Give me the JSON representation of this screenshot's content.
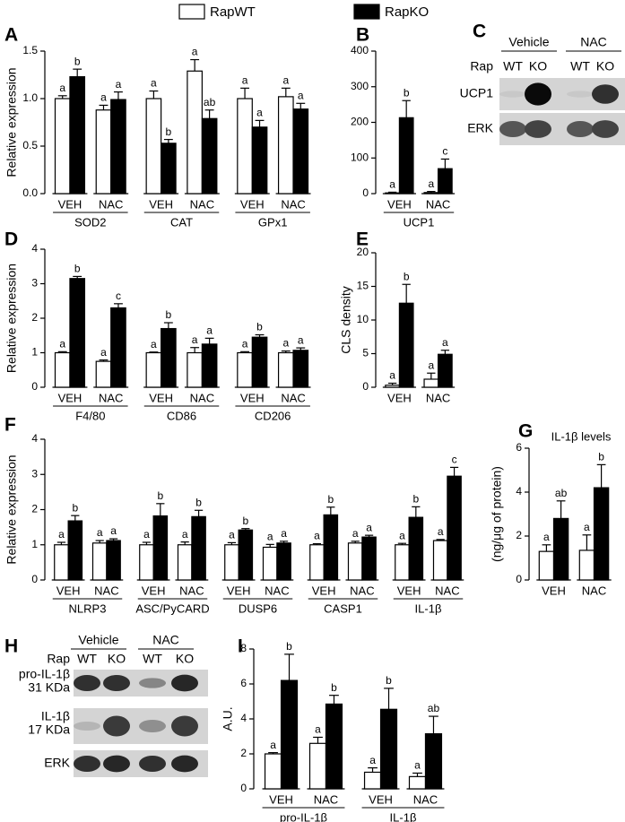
{
  "legend": {
    "items": [
      {
        "name": "RapWT",
        "color": "#ffffff"
      },
      {
        "name": "RapKO",
        "color": "#000000"
      }
    ]
  },
  "chart_data": [
    {
      "type": "bar",
      "label": "A",
      "y_label": "Relative expression",
      "groups": [
        "SOD2",
        "CAT",
        "GPx1"
      ],
      "categories": [
        "VEH",
        "NAC",
        "VEH",
        "NAC",
        "VEH",
        "NAC"
      ],
      "ylim": [
        0,
        1.5
      ],
      "yticks": [
        {
          "value": 0,
          "label": "0.0"
        },
        0.5,
        {
          "value": 1,
          "label": "1.0"
        },
        1.5
      ],
      "series": [
        {
          "color": "#ffffff",
          "values": [
            1.0,
            0.88,
            1.0,
            1.29,
            1.0,
            1.02
          ],
          "errors": [
            0.03,
            0.05,
            0.08,
            0.12,
            0.11,
            0.09
          ],
          "letters": [
            "a",
            "a",
            "a",
            "a",
            "a",
            "a"
          ]
        },
        {
          "color": "#000000",
          "values": [
            1.23,
            0.99,
            0.53,
            0.79,
            0.7,
            0.89
          ],
          "errors": [
            0.08,
            0.08,
            0.04,
            0.09,
            0.07,
            0.06
          ],
          "letters": [
            "b",
            "a",
            "b",
            "ab",
            "a",
            "a"
          ]
        }
      ]
    },
    {
      "type": "bar",
      "label": "B",
      "groups": [
        "UCP1"
      ],
      "categories": [
        "VEH",
        "NAC"
      ],
      "ylim": [
        0,
        400
      ],
      "yticks": [
        0,
        100,
        200,
        300,
        400
      ],
      "series": [
        {
          "color": "#ffffff",
          "values": [
            2,
            3
          ],
          "errors": [
            2,
            3
          ],
          "letters": [
            "a",
            "a"
          ]
        },
        {
          "color": "#000000",
          "values": [
            213,
            70
          ],
          "errors": [
            48,
            27
          ],
          "letters": [
            "b",
            "c"
          ]
        }
      ]
    },
    {
      "type": "bar",
      "label": "D",
      "y_label": "Relative expression",
      "groups": [
        "F4/80",
        "CD86",
        "CD206"
      ],
      "categories": [
        "VEH",
        "NAC",
        "VEH",
        "NAC",
        "VEH",
        "NAC"
      ],
      "ylim": [
        0,
        4
      ],
      "yticks": [
        0,
        1,
        2,
        3,
        4
      ],
      "series": [
        {
          "color": "#ffffff",
          "values": [
            1.0,
            0.75,
            1.0,
            1.0,
            1.0,
            1.0
          ],
          "errors": [
            0.03,
            0.04,
            0.02,
            0.15,
            0.03,
            0.05
          ],
          "letters": [
            "a",
            "a",
            "a",
            "a",
            "a",
            "a"
          ]
        },
        {
          "color": "#000000",
          "values": [
            3.15,
            2.3,
            1.7,
            1.25,
            1.45,
            1.07
          ],
          "errors": [
            0.06,
            0.12,
            0.17,
            0.17,
            0.07,
            0.07
          ],
          "letters": [
            "b",
            "c",
            "b",
            "a",
            "b",
            "a"
          ]
        }
      ]
    },
    {
      "type": "bar",
      "label": "E",
      "y_label": "CLS density",
      "categories": [
        "VEH",
        "NAC"
      ],
      "ylim": [
        0,
        20
      ],
      "yticks": [
        0,
        5,
        10,
        15,
        20
      ],
      "series": [
        {
          "color": "#ffffff",
          "values": [
            0.3,
            1.2
          ],
          "errors": [
            0.3,
            0.9
          ],
          "letters": [
            "a",
            "a"
          ]
        },
        {
          "color": "#000000",
          "values": [
            12.5,
            4.9
          ],
          "errors": [
            2.8,
            0.6
          ],
          "letters": [
            "b",
            "a"
          ]
        }
      ]
    },
    {
      "type": "bar",
      "label": "F",
      "y_label": "Relative expression",
      "groups": [
        "NLRP3",
        "ASC/PyCARD",
        "DUSP6",
        "CASP1",
        "IL-1β"
      ],
      "categories": [
        "VEH",
        "NAC",
        "VEH",
        "NAC",
        "VEH",
        "NAC",
        "VEH",
        "NAC",
        "VEH",
        "NAC"
      ],
      "ylim": [
        0,
        4
      ],
      "yticks": [
        0,
        1,
        2,
        3,
        4
      ],
      "series": [
        {
          "color": "#ffffff",
          "values": [
            1.0,
            1.05,
            1.0,
            1.0,
            1.0,
            0.93,
            1.0,
            1.05,
            1.0,
            1.12
          ],
          "errors": [
            0.07,
            0.07,
            0.07,
            0.08,
            0.06,
            0.08,
            0.03,
            0.05,
            0.04,
            0.03
          ],
          "letters": [
            "a",
            "a",
            "a",
            "a",
            "a",
            "a",
            "a",
            "a",
            "a",
            "a"
          ]
        },
        {
          "color": "#000000",
          "values": [
            1.68,
            1.12,
            1.82,
            1.8,
            1.42,
            1.05,
            1.85,
            1.22,
            1.78,
            2.95
          ],
          "errors": [
            0.15,
            0.05,
            0.35,
            0.18,
            0.04,
            0.05,
            0.22,
            0.05,
            0.3,
            0.25
          ],
          "letters": [
            "b",
            "a",
            "b",
            "b",
            "b",
            "a",
            "b",
            "a",
            "b",
            "c"
          ]
        }
      ]
    },
    {
      "type": "bar",
      "label": "G",
      "title": "IL-1β levels",
      "y_label": "(ng/μg of protein)",
      "categories": [
        "VEH",
        "NAC"
      ],
      "ylim": [
        0,
        6
      ],
      "yticks": [
        0,
        2,
        4,
        6
      ],
      "series": [
        {
          "color": "#ffffff",
          "values": [
            1.3,
            1.35
          ],
          "errors": [
            0.3,
            0.7
          ],
          "letters": [
            "a",
            "a"
          ]
        },
        {
          "color": "#000000",
          "values": [
            2.8,
            4.2
          ],
          "errors": [
            0.8,
            1.05
          ],
          "letters": [
            "ab",
            "b"
          ]
        }
      ]
    },
    {
      "type": "bar",
      "label": "I",
      "y_label": "A.U.",
      "groups": [
        "pro-IL-1β",
        "IL-1β"
      ],
      "categories": [
        "VEH",
        "NAC",
        "VEH",
        "NAC"
      ],
      "ylim": [
        0,
        8
      ],
      "yticks": [
        0,
        2,
        4,
        6,
        8
      ],
      "series": [
        {
          "color": "#ffffff",
          "values": [
            2.0,
            2.6,
            0.95,
            0.7
          ],
          "errors": [
            0.07,
            0.35,
            0.25,
            0.2
          ],
          "letters": [
            "a",
            "a",
            "a",
            "a"
          ]
        },
        {
          "color": "#000000",
          "values": [
            6.2,
            4.85,
            4.55,
            3.15
          ],
          "errors": [
            1.5,
            0.5,
            1.2,
            1.0
          ],
          "letters": [
            "b",
            "b",
            "b",
            "ab"
          ]
        }
      ]
    }
  ],
  "blots": [
    {
      "label": "C",
      "lane_groups": [
        "Vehicle",
        "NAC"
      ],
      "row_label": "Rap",
      "lanes": [
        "WT",
        "KO",
        "WT",
        "KO"
      ],
      "bands": [
        [
          "UCP1"
        ],
        [
          "ERK"
        ]
      ]
    },
    {
      "label": "H",
      "lane_groups": [
        "Vehicle",
        "NAC"
      ],
      "row_label": "Rap",
      "lanes": [
        "WT",
        "KO",
        "WT",
        "KO"
      ],
      "bands": [
        [
          "pro-IL-1β",
          "31 KDa"
        ],
        [
          "IL-1β",
          "17 KDa"
        ],
        [
          "ERK"
        ]
      ]
    }
  ]
}
